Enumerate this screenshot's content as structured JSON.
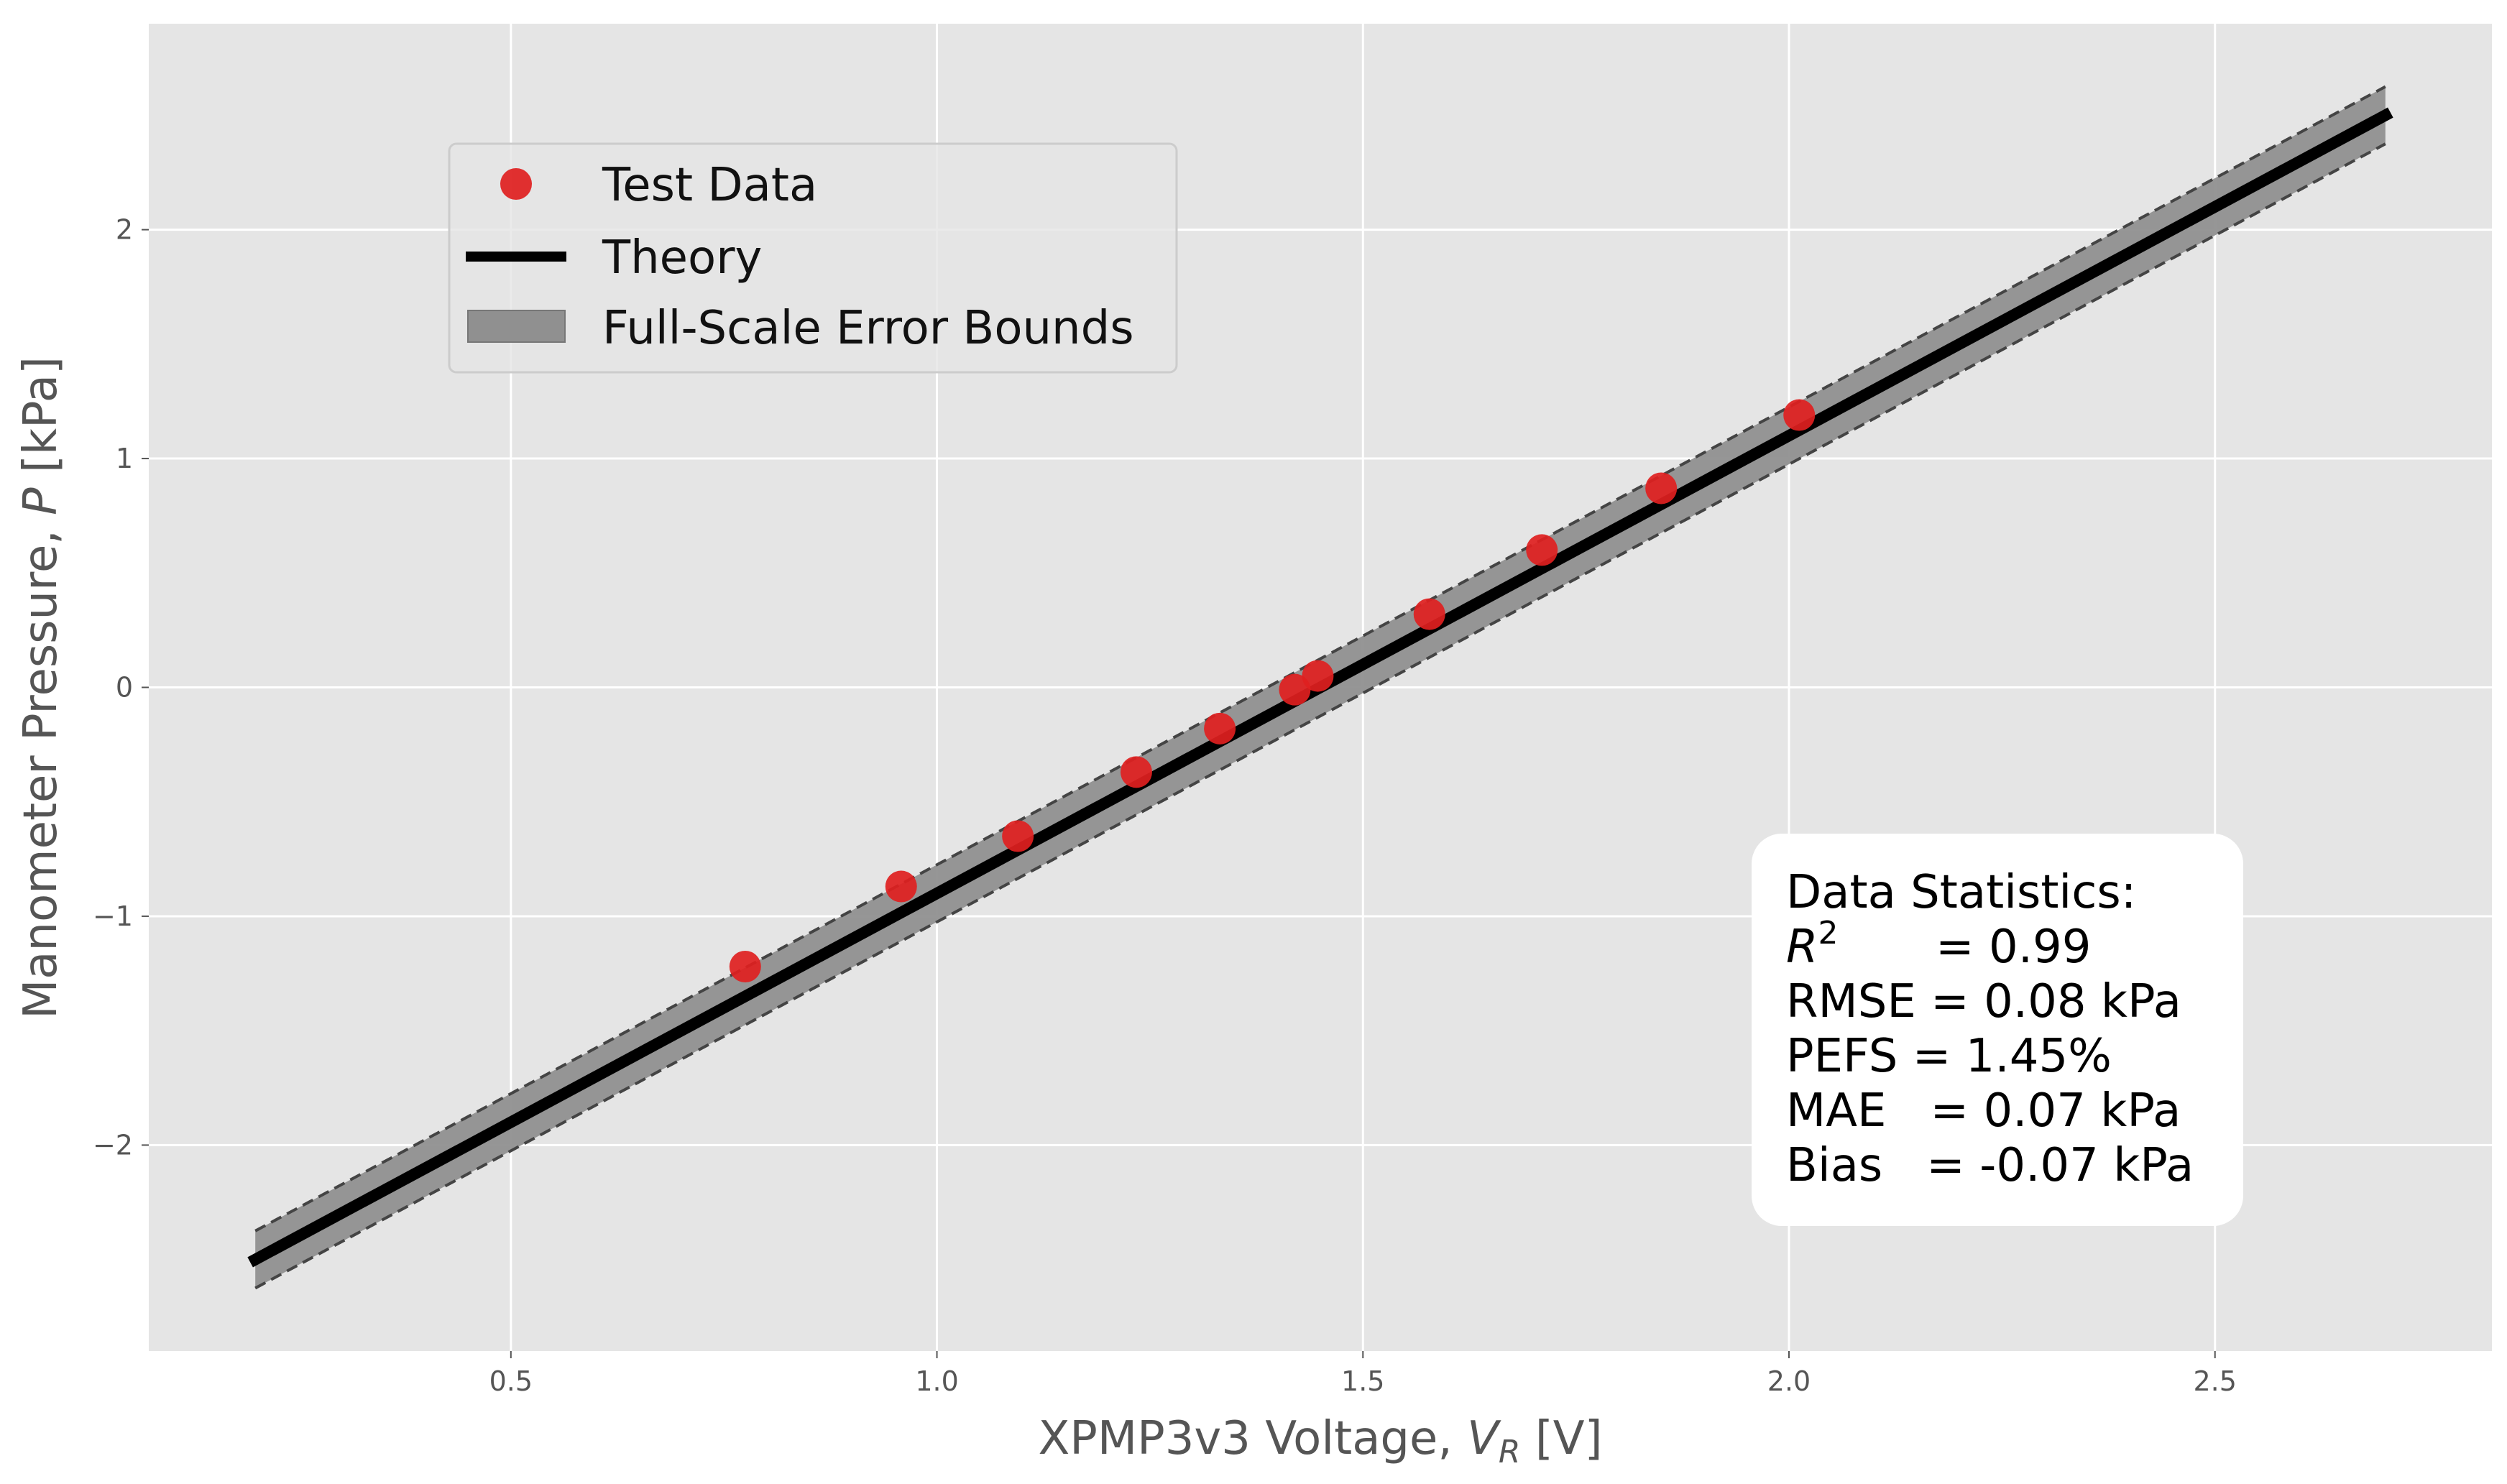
{
  "chart_data": {
    "type": "scatter",
    "xlabel": "XPMP3v3 Voltage, V_R [V]",
    "xlabel_parts": {
      "prefix": "XPMP3v3 Voltage, ",
      "var": "V",
      "sub": "R",
      "suffix": " [V]"
    },
    "ylabel": "Manometer Pressure, P [kPa]",
    "ylabel_parts": {
      "prefix": "Manometer Pressure, ",
      "var": "P",
      "suffix": " [kPa]"
    },
    "xlim": [
      0.075,
      2.825
    ],
    "ylim": [
      -2.9,
      2.9
    ],
    "x_ticks": [
      0.5,
      1.0,
      1.5,
      2.0,
      2.5
    ],
    "x_tick_labels": [
      "0.5",
      "1.0",
      "1.5",
      "2.0",
      "2.5"
    ],
    "y_ticks": [
      -2,
      -1,
      0,
      1,
      2
    ],
    "y_tick_labels": [
      "−2",
      "−1",
      "0",
      "1",
      "2"
    ],
    "grid": true,
    "background": "#e5e5e5",
    "series": [
      {
        "name": "Test Data",
        "kind": "scatter",
        "color": "#e02020",
        "x": [
          0.775,
          0.958,
          1.095,
          1.234,
          1.332,
          1.42,
          1.447,
          1.578,
          1.71,
          1.85,
          2.012
        ],
        "y": [
          -1.22,
          -0.87,
          -0.65,
          -0.37,
          -0.18,
          -0.01,
          0.05,
          0.32,
          0.6,
          0.87,
          1.19
        ]
      },
      {
        "name": "Theory",
        "kind": "line",
        "color": "#000000",
        "x": [
          0.2,
          2.7
        ],
        "y": [
          -2.5,
          2.5
        ]
      },
      {
        "name": "Full-Scale Error Bounds",
        "kind": "band",
        "color": "#909090",
        "x": [
          0.2,
          2.7
        ],
        "y_lower": [
          -2.625,
          2.375
        ],
        "y_upper": [
          -2.375,
          2.625
        ]
      }
    ],
    "legend_position": "top-left",
    "legend": [
      "Test Data",
      "Theory",
      "Full-Scale Error Bounds"
    ],
    "stats_box": {
      "title": "Data Statistics:",
      "r2_label": "R",
      "r2_sup": "2",
      "r2_value": "= 0.99",
      "rmse": "RMSE = 0.08 kPa",
      "pefs": "PEFS = 1.45%",
      "mae": "MAE   = 0.07 kPa",
      "bias": "Bias   = -0.07 kPa"
    }
  }
}
